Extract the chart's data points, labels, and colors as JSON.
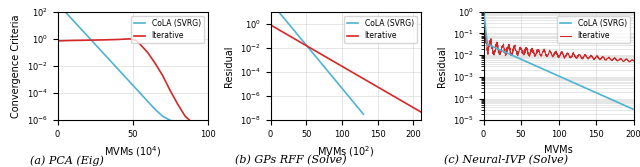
{
  "subplot_a": {
    "title": "(a) PCA (Eig)",
    "xlabel": "MVMs (10$^4$)",
    "ylabel": "Convergence Criteria",
    "xlim": [
      0,
      100
    ],
    "cola_color": "#4eb3d3",
    "iter_color": "#d62728",
    "legend_labels": [
      "CoLA (SVRG)",
      "Iterative"
    ]
  },
  "subplot_b": {
    "title": "(b) GPs RFF (Solve)",
    "xlabel": "MVMs (10$^2$)",
    "ylabel": "Residual",
    "cola_color": "#4eb3d3",
    "iter_color": "#d62728",
    "legend_labels": [
      "CoLA (SVRG)",
      "Iterative"
    ]
  },
  "subplot_c": {
    "title": "(c) Neural-IVP (Solve)",
    "xlabel": "MVMs",
    "ylabel": "Residual",
    "cola_color": "#4eb3d3",
    "iter_color": "#d62728",
    "legend_labels": [
      "CoLA (SVRG)",
      "Iterative"
    ]
  },
  "figure_bg": "#ffffff",
  "axes_bg": "#ffffff",
  "grid_color": "#cccccc"
}
